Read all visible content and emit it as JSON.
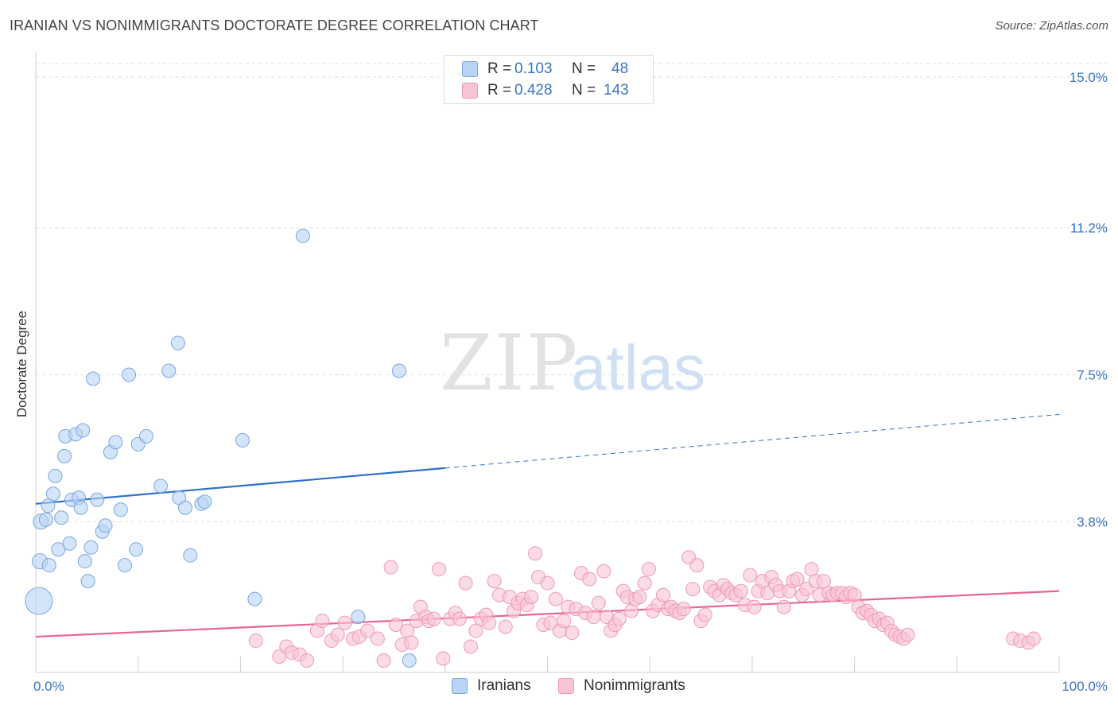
{
  "title": "IRANIAN VS NONIMMIGRANTS DOCTORATE DEGREE CORRELATION CHART",
  "source": "Source: ZipAtlas.com",
  "watermark": {
    "zip": "ZIP",
    "atlas": "atlas"
  },
  "legend_top": [
    {
      "r_label": "R =",
      "r_value": "0.103",
      "n_label": "N =",
      "n_value": "48"
    },
    {
      "r_label": "R =",
      "r_value": "0.428",
      "n_label": "N =",
      "n_value": "143"
    }
  ],
  "legend_bottom": [
    "Iranians",
    "Nonimmigrants"
  ],
  "colors": {
    "iranians_fill": "#b8d3f5",
    "iranians_stroke": "#7aa7df",
    "iranians_line": "#2f72cc",
    "nonimm_fill": "#f9c4d3",
    "nonimm_stroke": "#ee9ab4",
    "nonimm_line": "#e8668f",
    "tick_text": "#3a74c4",
    "grid": "#dddddd"
  },
  "chart_data": {
    "type": "scatter",
    "title": "IRANIAN VS NONIMMIGRANTS DOCTORATE DEGREE CORRELATION CHART",
    "xlabel": "",
    "ylabel": "Doctorate Degree",
    "xlim": [
      0,
      100
    ],
    "ylim": [
      0,
      15.0
    ],
    "x_tick_labels": [
      "0.0%",
      "100.0%"
    ],
    "y_ticks": [
      3.8,
      7.5,
      11.2,
      15.0
    ],
    "y_tick_labels": [
      "3.8%",
      "7.5%",
      "11.2%",
      "15.0%"
    ],
    "series": [
      {
        "name": "Iranians",
        "R": 0.103,
        "N": 48,
        "trend": {
          "x0": 0,
          "y0": 4.25,
          "x1": 40,
          "y1": 5.15,
          "dashed_to_x": 100,
          "dashed_to_y": 6.5
        },
        "points": [
          [
            0.3,
            1.8,
            2.2
          ],
          [
            0.4,
            2.8,
            0.9
          ],
          [
            0.5,
            3.8,
            0.9
          ],
          [
            1.0,
            3.85,
            0.8
          ],
          [
            1.3,
            2.7,
            0.8
          ],
          [
            1.2,
            4.2,
            0.8
          ],
          [
            1.7,
            4.5,
            0.8
          ],
          [
            1.9,
            4.95,
            0.8
          ],
          [
            2.2,
            3.1,
            0.8
          ],
          [
            2.5,
            3.9,
            0.8
          ],
          [
            2.8,
            5.45,
            0.8
          ],
          [
            2.9,
            5.95,
            0.8
          ],
          [
            3.3,
            3.25,
            0.8
          ],
          [
            3.5,
            4.35,
            0.8
          ],
          [
            3.9,
            6.0,
            0.8
          ],
          [
            4.2,
            4.4,
            0.8
          ],
          [
            4.4,
            4.15,
            0.8
          ],
          [
            4.6,
            6.1,
            0.8
          ],
          [
            4.8,
            2.8,
            0.8
          ],
          [
            5.1,
            2.3,
            0.8
          ],
          [
            5.4,
            3.15,
            0.8
          ],
          [
            5.6,
            7.4,
            0.8
          ],
          [
            6.0,
            4.35,
            0.8
          ],
          [
            6.5,
            3.55,
            0.8
          ],
          [
            6.8,
            3.7,
            0.8
          ],
          [
            7.3,
            5.55,
            0.8
          ],
          [
            7.8,
            5.8,
            0.8
          ],
          [
            8.3,
            4.1,
            0.8
          ],
          [
            8.7,
            2.7,
            0.8
          ],
          [
            9.1,
            7.5,
            0.8
          ],
          [
            9.8,
            3.1,
            0.8
          ],
          [
            10.0,
            5.75,
            0.8
          ],
          [
            10.8,
            5.95,
            0.8
          ],
          [
            12.2,
            4.7,
            0.8
          ],
          [
            13.0,
            7.6,
            0.8
          ],
          [
            13.9,
            8.3,
            0.8
          ],
          [
            14.0,
            4.4,
            0.8
          ],
          [
            14.6,
            4.15,
            0.8
          ],
          [
            15.1,
            2.95,
            0.8
          ],
          [
            16.2,
            4.25,
            0.8
          ],
          [
            16.5,
            4.3,
            0.8
          ],
          [
            20.2,
            5.85,
            0.8
          ],
          [
            21.4,
            1.85,
            0.8
          ],
          [
            26.1,
            11.0,
            0.8
          ],
          [
            31.5,
            1.4,
            0.8
          ],
          [
            35.5,
            7.6,
            0.8
          ],
          [
            36.5,
            0.3,
            0.8
          ]
        ]
      },
      {
        "name": "Nonimmigrants",
        "R": 0.428,
        "N": 143,
        "trend": {
          "x0": 0,
          "y0": 0.9,
          "x1": 100,
          "y1": 2.05
        },
        "points": [
          [
            21.5,
            0.8
          ],
          [
            23.8,
            0.4
          ],
          [
            24.5,
            0.65
          ],
          [
            25.0,
            0.5
          ],
          [
            25.8,
            0.45
          ],
          [
            26.5,
            0.3
          ],
          [
            27.5,
            1.05
          ],
          [
            28.0,
            1.3
          ],
          [
            28.9,
            0.8
          ],
          [
            29.5,
            0.95
          ],
          [
            30.2,
            1.25
          ],
          [
            31.0,
            0.85
          ],
          [
            31.6,
            0.9
          ],
          [
            32.4,
            1.05
          ],
          [
            33.4,
            0.85
          ],
          [
            34.0,
            0.3
          ],
          [
            34.7,
            2.65
          ],
          [
            35.2,
            1.2
          ],
          [
            35.8,
            0.7
          ],
          [
            36.3,
            1.05
          ],
          [
            36.7,
            0.75
          ],
          [
            37.2,
            1.3
          ],
          [
            37.6,
            1.65
          ],
          [
            38.1,
            1.4
          ],
          [
            38.4,
            1.3
          ],
          [
            38.9,
            1.35
          ],
          [
            39.4,
            2.6
          ],
          [
            39.8,
            0.35
          ],
          [
            40.5,
            1.35
          ],
          [
            41.0,
            1.5
          ],
          [
            41.4,
            1.35
          ],
          [
            42.0,
            2.25
          ],
          [
            42.5,
            0.65
          ],
          [
            43.0,
            1.05
          ],
          [
            43.5,
            1.35
          ],
          [
            44.0,
            1.45
          ],
          [
            44.3,
            1.25
          ],
          [
            44.8,
            2.3
          ],
          [
            45.3,
            1.95
          ],
          [
            45.9,
            1.15
          ],
          [
            46.3,
            1.9
          ],
          [
            46.7,
            1.55
          ],
          [
            47.1,
            1.75
          ],
          [
            47.6,
            1.85
          ],
          [
            48.0,
            1.7
          ],
          [
            48.4,
            1.9
          ],
          [
            48.8,
            3.0
          ],
          [
            49.1,
            2.4
          ],
          [
            49.6,
            1.2
          ],
          [
            50.0,
            2.25
          ],
          [
            50.3,
            1.25
          ],
          [
            50.8,
            1.85
          ],
          [
            51.2,
            1.05
          ],
          [
            51.6,
            1.3
          ],
          [
            52.0,
            1.65
          ],
          [
            52.4,
            1.0
          ],
          [
            52.8,
            1.6
          ],
          [
            53.3,
            2.5
          ],
          [
            53.7,
            1.5
          ],
          [
            54.1,
            2.35
          ],
          [
            54.5,
            1.4
          ],
          [
            55.0,
            1.75
          ],
          [
            55.5,
            2.55
          ],
          [
            55.8,
            1.4
          ],
          [
            56.2,
            1.05
          ],
          [
            56.6,
            1.2
          ],
          [
            57.0,
            1.35
          ],
          [
            57.4,
            2.05
          ],
          [
            57.8,
            1.9
          ],
          [
            58.2,
            1.55
          ],
          [
            58.6,
            1.85
          ],
          [
            59.0,
            1.9
          ],
          [
            59.5,
            2.25
          ],
          [
            59.9,
            2.6
          ],
          [
            60.3,
            1.55
          ],
          [
            60.8,
            1.7
          ],
          [
            61.3,
            1.95
          ],
          [
            61.8,
            1.6
          ],
          [
            62.1,
            1.65
          ],
          [
            62.5,
            1.55
          ],
          [
            62.9,
            1.5
          ],
          [
            63.3,
            1.6
          ],
          [
            63.8,
            2.9
          ],
          [
            64.2,
            2.1
          ],
          [
            64.6,
            2.7
          ],
          [
            65.0,
            1.3
          ],
          [
            65.4,
            1.45
          ],
          [
            65.9,
            2.15
          ],
          [
            66.3,
            2.05
          ],
          [
            66.8,
            1.95
          ],
          [
            67.2,
            2.2
          ],
          [
            67.6,
            2.1
          ],
          [
            68.0,
            2.0
          ],
          [
            68.4,
            1.95
          ],
          [
            68.9,
            2.05
          ],
          [
            69.3,
            1.7
          ],
          [
            69.8,
            2.45
          ],
          [
            70.2,
            1.65
          ],
          [
            70.6,
            2.05
          ],
          [
            71.0,
            2.3
          ],
          [
            71.5,
            2.0
          ],
          [
            71.9,
            2.4
          ],
          [
            72.3,
            2.2
          ],
          [
            72.7,
            2.05
          ],
          [
            73.1,
            1.65
          ],
          [
            73.6,
            2.05
          ],
          [
            74.0,
            2.3
          ],
          [
            74.4,
            2.35
          ],
          [
            74.9,
            1.95
          ],
          [
            75.3,
            2.1
          ],
          [
            75.8,
            2.6
          ],
          [
            76.2,
            2.3
          ],
          [
            76.6,
            1.95
          ],
          [
            77.0,
            2.3
          ],
          [
            77.5,
            2.0
          ],
          [
            77.9,
            1.95
          ],
          [
            78.3,
            2.0
          ],
          [
            78.8,
            2.0
          ],
          [
            79.2,
            1.9
          ],
          [
            79.6,
            2.0
          ],
          [
            80.0,
            1.95
          ],
          [
            80.4,
            1.65
          ],
          [
            80.8,
            1.5
          ],
          [
            81.2,
            1.55
          ],
          [
            81.6,
            1.45
          ],
          [
            82.0,
            1.3
          ],
          [
            82.4,
            1.35
          ],
          [
            82.8,
            1.2
          ],
          [
            83.2,
            1.25
          ],
          [
            83.6,
            1.05
          ],
          [
            84.0,
            0.95
          ],
          [
            84.4,
            0.9
          ],
          [
            84.8,
            0.85
          ],
          [
            85.2,
            0.95
          ],
          [
            95.5,
            0.85
          ],
          [
            96.2,
            0.8
          ],
          [
            97.0,
            0.75
          ],
          [
            97.5,
            0.85
          ]
        ]
      }
    ]
  }
}
